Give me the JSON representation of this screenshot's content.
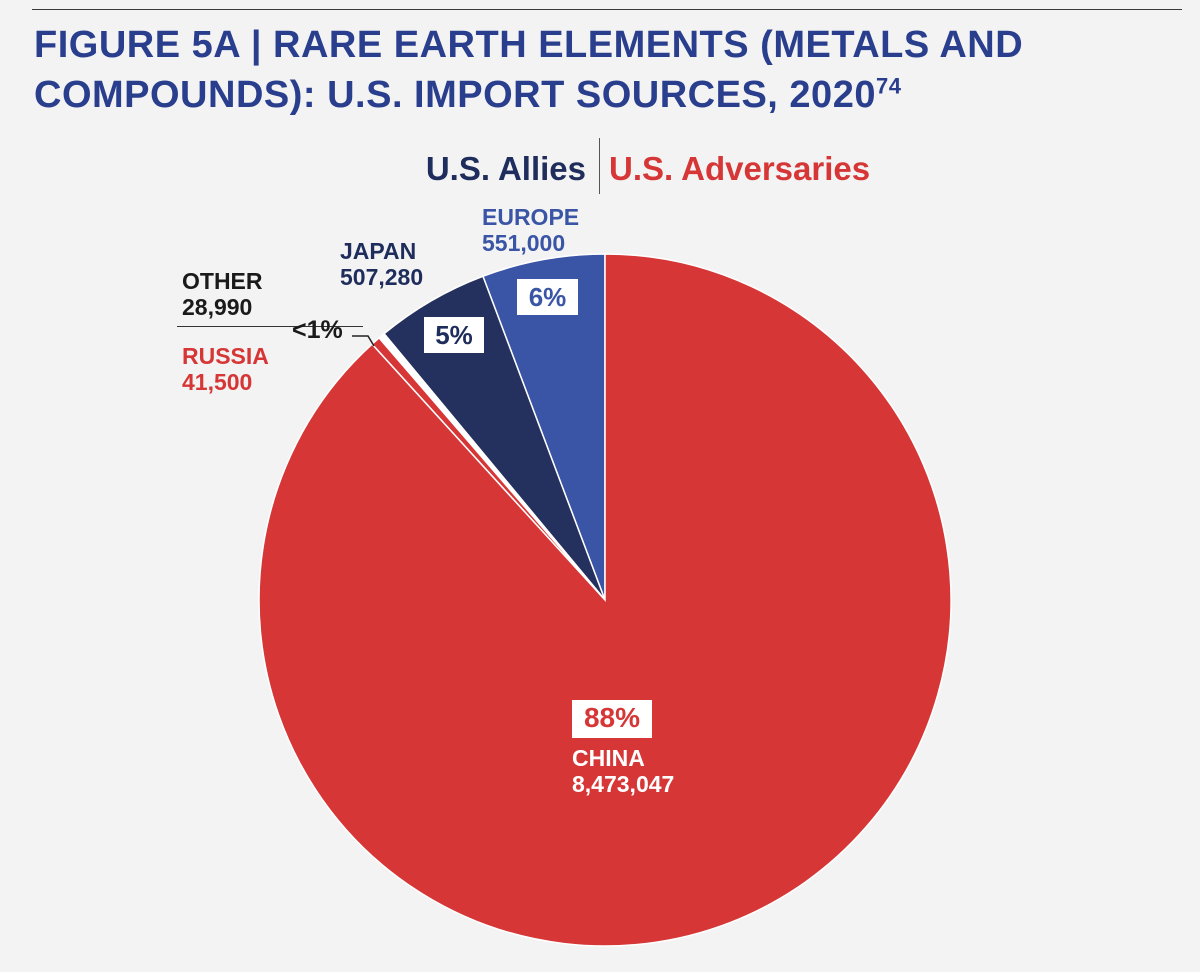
{
  "figure": {
    "title": "FIGURE 5A  |  RARE EARTH ELEMENTS (METALS AND COMPOUNDS): U.S. IMPORT SOURCES, 2020",
    "footnote_ref": "74"
  },
  "legend": {
    "allies": "U.S. Allies",
    "adversaries": "U.S. Adversaries"
  },
  "colors": {
    "china": "#d63636",
    "russia": "#d63636",
    "other": "#ffffff",
    "japan": "#24305e",
    "europe": "#3a55a6",
    "title": "#2a3e8e"
  },
  "chart_data": {
    "type": "pie",
    "title": "RARE EARTH ELEMENTS (METALS AND COMPOUNDS): U.S. IMPORT SOURCES, 2020",
    "categories": [
      "EUROPE",
      "JAPAN",
      "OTHER",
      "RUSSIA",
      "CHINA"
    ],
    "values": [
      551000,
      507280,
      28990,
      41500,
      8473047
    ],
    "value_labels": [
      "551,000",
      "507,280",
      "28,990",
      "41,500",
      "8,473,047"
    ],
    "percent_labels": [
      "6%",
      "5%",
      "<1%",
      "<1%",
      "88%"
    ],
    "groups": [
      "U.S. Allies",
      "U.S. Allies",
      "",
      "U.S. Adversaries",
      "U.S. Adversaries"
    ],
    "small_slices_label": "<1%"
  }
}
